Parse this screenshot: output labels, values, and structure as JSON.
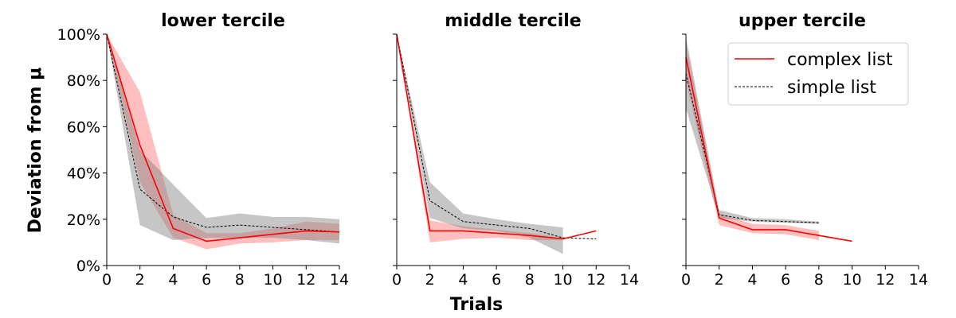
{
  "colors": {
    "complex": "#ff0000",
    "simple": "#000000",
    "complex_band": "#ff0000",
    "simple_band": "#808080"
  },
  "legend": {
    "placement": "top-right of upper tercile panel",
    "complex_label": "complex list",
    "simple_label": "simple list"
  },
  "chart_data": [
    {
      "type": "line",
      "title": "lower tercile",
      "xlabel": "",
      "ylabel": "Deviation from μ",
      "xlim": [
        0,
        14
      ],
      "ylim": [
        0,
        100
      ],
      "xticks": [
        0,
        2,
        4,
        6,
        8,
        10,
        12,
        14
      ],
      "yticks": [
        0,
        20,
        40,
        60,
        80,
        100
      ],
      "ytick_labels": [
        "0%",
        "20%",
        "40%",
        "60%",
        "80%",
        "100%"
      ],
      "series": [
        {
          "name": "complex list",
          "style": "solid",
          "x": [
            0,
            2,
            4,
            6,
            8,
            10,
            12,
            14
          ],
          "y": [
            100,
            52,
            16,
            10.5,
            12,
            13.5,
            15,
            14.5
          ],
          "band_low": [
            100,
            36,
            12,
            7,
            9.5,
            10,
            11,
            11
          ],
          "band_high": [
            100,
            75,
            22,
            14,
            14,
            16,
            19,
            18
          ]
        },
        {
          "name": "simple list",
          "style": "dashed",
          "x": [
            0,
            2,
            4,
            6,
            8,
            10,
            12,
            14
          ],
          "y": [
            100,
            33,
            21,
            16.5,
            17.5,
            16.5,
            15.5,
            14.5
          ],
          "band_low": [
            100,
            17.5,
            11,
            12,
            12,
            12,
            11,
            9.5
          ],
          "band_high": [
            100,
            50,
            35,
            20.5,
            22.5,
            21,
            21,
            20
          ]
        }
      ]
    },
    {
      "type": "line",
      "title": "middle tercile",
      "xlabel": "Trials",
      "ylabel": "",
      "xlim": [
        0,
        14
      ],
      "ylim": [
        0,
        100
      ],
      "xticks": [
        0,
        2,
        4,
        6,
        8,
        10,
        12,
        14
      ],
      "yticks": [
        0,
        20,
        40,
        60,
        80,
        100
      ],
      "ytick_labels": [],
      "series": [
        {
          "name": "complex list",
          "style": "solid",
          "x": [
            0,
            2,
            4,
            6,
            8,
            10,
            12
          ],
          "y": [
            100,
            15,
            15,
            14,
            13,
            11.5,
            15
          ],
          "band_low": [
            100,
            10,
            11.5,
            12,
            11,
            11
          ],
          "band_high": [
            100,
            19.5,
            17,
            15.5,
            14,
            12
          ],
          "band_x": [
            0,
            2,
            4,
            6,
            8,
            10
          ]
        },
        {
          "name": "simple list",
          "style": "dashed",
          "x": [
            0,
            2,
            4,
            6,
            8,
            10,
            12
          ],
          "y": [
            100,
            28,
            19,
            17.5,
            16,
            12,
            11.5
          ],
          "band_low": [
            100,
            20.5,
            16,
            15,
            12,
            5
          ],
          "band_high": [
            100,
            36,
            22.5,
            20,
            18,
            16.5
          ],
          "band_x": [
            0,
            2,
            4,
            6,
            8,
            10
          ]
        }
      ]
    },
    {
      "type": "line",
      "title": "upper tercile",
      "xlabel": "",
      "ylabel": "",
      "xlim": [
        0,
        14
      ],
      "ylim": [
        0,
        100
      ],
      "xticks": [
        0,
        2,
        4,
        6,
        8,
        10,
        12,
        14
      ],
      "yticks": [
        0,
        20,
        40,
        60,
        80,
        100
      ],
      "ytick_labels": [],
      "series": [
        {
          "name": "complex list",
          "style": "solid",
          "x": [
            0,
            2,
            4,
            6,
            8,
            10
          ],
          "y": [
            90,
            20.5,
            15.5,
            15.5,
            13,
            10.5
          ],
          "band_low": [
            80,
            17.5,
            14,
            13.5,
            11
          ],
          "band_high": [
            96,
            22.5,
            18,
            17.5,
            15
          ],
          "band_x": [
            0,
            2,
            4,
            6,
            8
          ]
        },
        {
          "name": "simple list",
          "style": "dashed",
          "x": [
            0,
            2,
            4,
            6,
            8
          ],
          "y": [
            83,
            22,
            19.5,
            19,
            18.5
          ],
          "band_low": [
            68,
            20.5,
            19,
            18.5,
            18
          ],
          "band_high": [
            99,
            24,
            20.5,
            20,
            19
          ],
          "band_x": [
            0,
            2,
            4,
            6,
            8
          ]
        }
      ]
    }
  ]
}
